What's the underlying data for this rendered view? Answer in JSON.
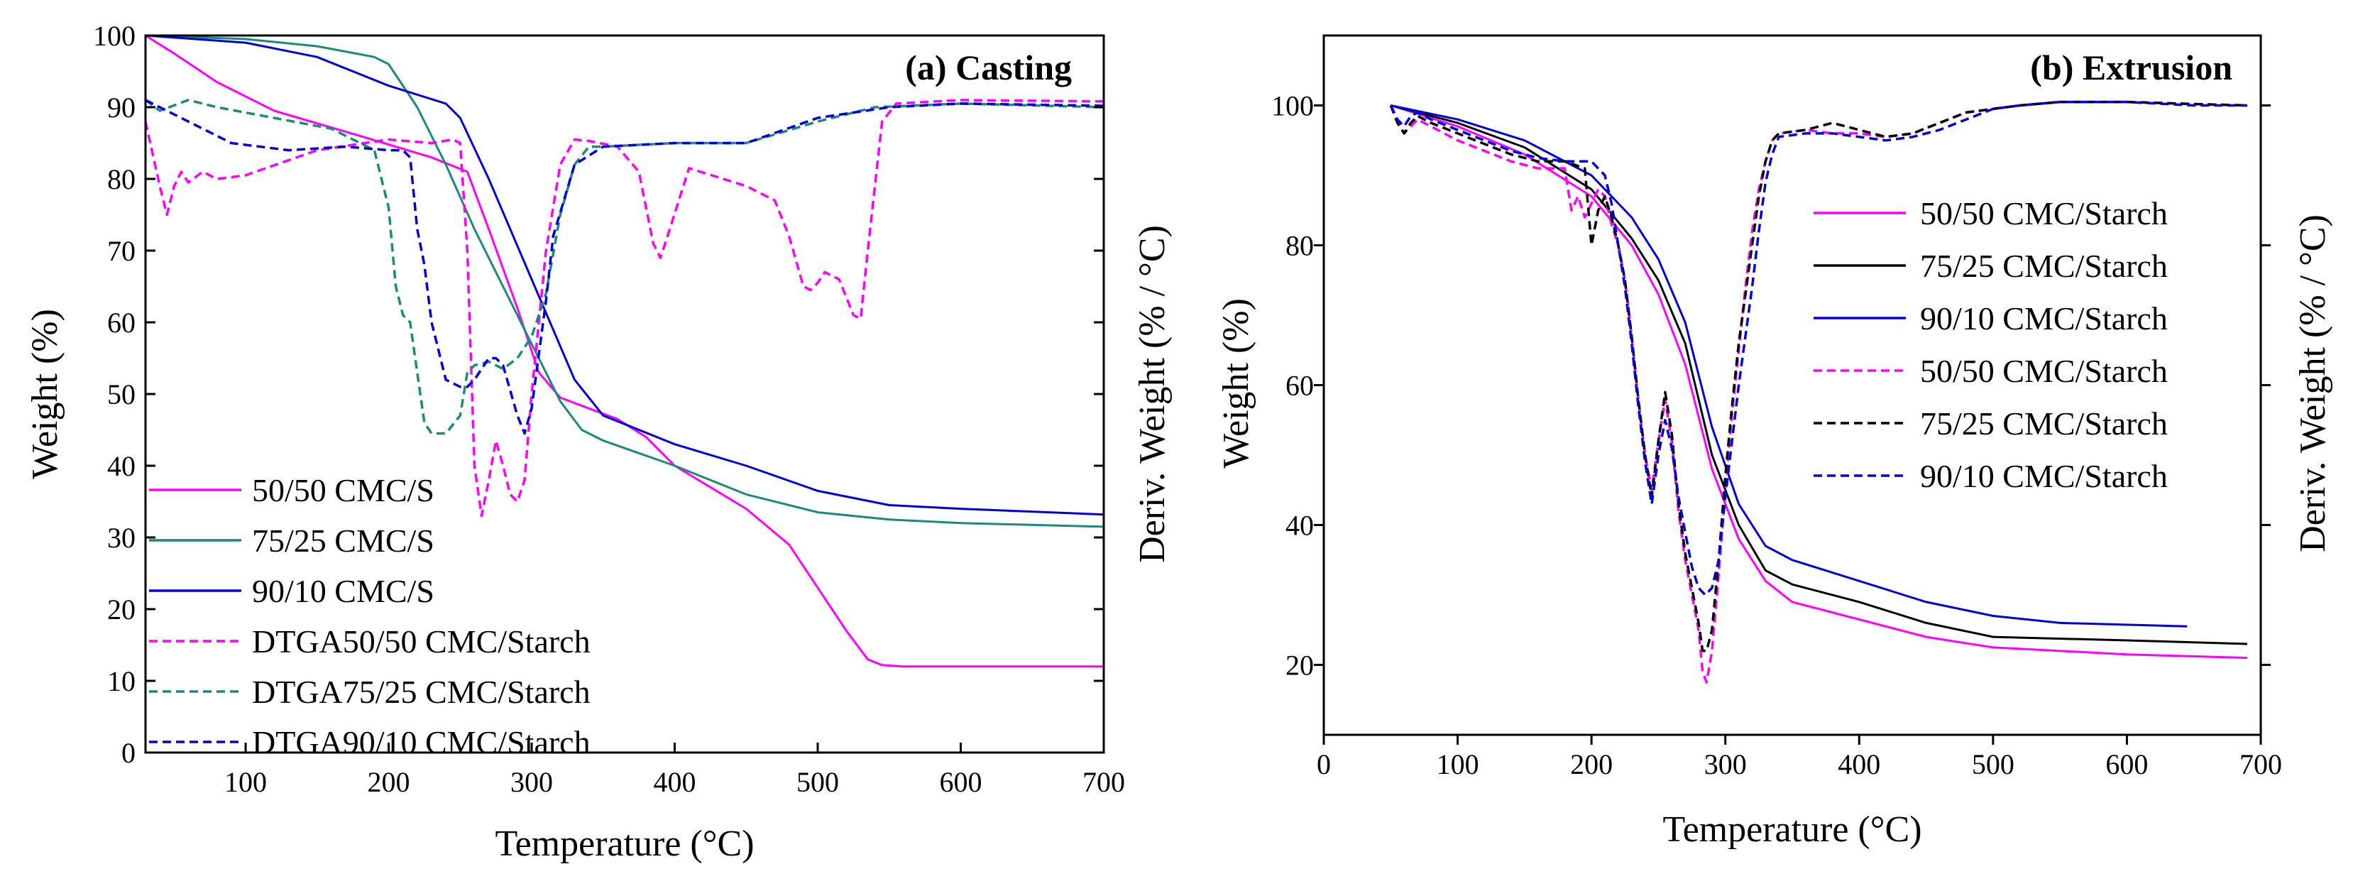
{
  "chart_data": [
    {
      "type": "line",
      "title": "(a) Casting",
      "xlabel": "Temperature (°C)",
      "ylabel": "Weight (%)",
      "y2label": "Deriv. Weight (% / °C)",
      "xlim": [
        30,
        700
      ],
      "ylim": [
        0,
        100
      ],
      "xticks": [
        100,
        200,
        300,
        400,
        500,
        600,
        700
      ],
      "yticks": [
        0,
        10,
        20,
        30,
        40,
        50,
        60,
        70,
        80,
        90,
        100
      ],
      "legend_position": "bottom-left",
      "series": [
        {
          "name": "50/50 CMC/S",
          "color": "#ff00ff",
          "dash": "solid",
          "x": [
            30,
            50,
            80,
            120,
            180,
            230,
            255,
            270,
            290,
            305,
            320,
            340,
            360,
            380,
            400,
            450,
            480,
            500,
            520,
            535,
            545,
            560,
            600,
            700
          ],
          "y": [
            100,
            97.5,
            93.5,
            89.5,
            86,
            83,
            81,
            73,
            62,
            53,
            49.5,
            48,
            46.5,
            44,
            40,
            34,
            29,
            23,
            17,
            13,
            12.2,
            12,
            12,
            12
          ]
        },
        {
          "name": "75/25 CMC/S",
          "color": "#1a8a7a",
          "dash": "solid",
          "x": [
            30,
            100,
            150,
            190,
            200,
            220,
            240,
            260,
            280,
            300,
            320,
            335,
            350,
            400,
            450,
            500,
            550,
            600,
            700
          ],
          "y": [
            100,
            99.5,
            98.5,
            97,
            96,
            90,
            82,
            73,
            65,
            57,
            49,
            45,
            43.5,
            40,
            36,
            33.5,
            32.5,
            32,
            31.5
          ]
        },
        {
          "name": "90/10 CMC/S",
          "color": "#0000dd",
          "dash": "solid",
          "x": [
            30,
            100,
            150,
            200,
            240,
            250,
            270,
            300,
            330,
            350,
            400,
            450,
            500,
            550,
            600,
            700
          ],
          "y": [
            100,
            99,
            97,
            93,
            90.5,
            88.5,
            80,
            66,
            52,
            47,
            43,
            40,
            36.5,
            34.5,
            34,
            33.2
          ]
        },
        {
          "name": "DTGA50/50 CMC/Starch",
          "color": "#ff00ff",
          "dash": "dashed",
          "x": [
            30,
            40,
            45,
            50,
            55,
            60,
            70,
            80,
            100,
            150,
            200,
            230,
            245,
            250,
            255,
            260,
            265,
            270,
            275,
            280,
            285,
            290,
            295,
            300,
            310,
            320,
            330,
            340,
            360,
            375,
            385,
            390,
            395,
            410,
            450,
            470,
            480,
            490,
            495,
            500,
            505,
            515,
            525,
            530,
            535,
            545,
            555,
            600,
            700
          ],
          "y": [
            88,
            79,
            75,
            79,
            81,
            79.5,
            81,
            80,
            80.5,
            84,
            85.5,
            85,
            85.5,
            85,
            70,
            40,
            33,
            38,
            43.5,
            40,
            36,
            35,
            38,
            50,
            70,
            82,
            85.5,
            85.3,
            84.5,
            81,
            71,
            69,
            72,
            81.5,
            79,
            77,
            72,
            65,
            64.5,
            65.5,
            67,
            66,
            61,
            60.5,
            70,
            88,
            90.5,
            91,
            90.8
          ]
        },
        {
          "name": "DTGA75/25 CMC/Starch",
          "color": "#1a8a7a",
          "dash": "dashed",
          "x": [
            30,
            40,
            60,
            80,
            120,
            160,
            190,
            200,
            205,
            210,
            215,
            220,
            225,
            230,
            240,
            250,
            255,
            260,
            270,
            280,
            290,
            300,
            310,
            320,
            330,
            340,
            350,
            400,
            450,
            500,
            540,
            600,
            700
          ],
          "y": [
            91,
            89.5,
            91,
            90,
            88.5,
            87,
            84,
            76,
            65,
            61,
            60,
            53,
            46,
            44.5,
            44.5,
            47,
            53,
            54,
            54.5,
            53.5,
            55,
            58,
            64,
            75,
            82,
            84.5,
            84.5,
            85,
            85,
            88,
            90,
            90.5,
            90
          ]
        },
        {
          "name": "DTGA90/10 CMC/Starch",
          "color": "#0000dd",
          "dash": "dashed",
          "x": [
            30,
            60,
            90,
            130,
            170,
            200,
            210,
            215,
            220,
            225,
            230,
            240,
            250,
            255,
            260,
            270,
            275,
            280,
            290,
            295,
            300,
            310,
            315,
            330,
            350,
            400,
            450,
            500,
            550,
            600,
            700
          ],
          "y": [
            91,
            88,
            85,
            84,
            84.5,
            84,
            84,
            83,
            73,
            68,
            60,
            52,
            51,
            51,
            52,
            55,
            55,
            54,
            47,
            44.5,
            48,
            63,
            72,
            82,
            84.5,
            85,
            85,
            88.5,
            90,
            90.5,
            90.2
          ]
        }
      ]
    },
    {
      "type": "line",
      "title": "(b) Extrusion",
      "xlabel": "Temperature (°C)",
      "ylabel": "Weight (%)",
      "y2label": "Deriv. Weight (% / °C)",
      "xlim": [
        0,
        700
      ],
      "ylim": [
        10,
        110
      ],
      "xticks": [
        0,
        100,
        200,
        300,
        400,
        500,
        600,
        700
      ],
      "yticks": [
        20,
        40,
        60,
        80,
        100
      ],
      "legend_position": "top-right",
      "series": [
        {
          "name": "50/50 CMC/Starch",
          "color": "#ff00ff",
          "dash": "solid",
          "x": [
            50,
            100,
            150,
            200,
            230,
            250,
            270,
            290,
            310,
            330,
            350,
            400,
            450,
            500,
            600,
            690
          ],
          "y": [
            100,
            97,
            93,
            87,
            80,
            73,
            63,
            48,
            38,
            32,
            29,
            26.5,
            24,
            22.5,
            21.5,
            21
          ]
        },
        {
          "name": "75/25 CMC/Starch",
          "color": "#000000",
          "dash": "solid",
          "x": [
            50,
            100,
            150,
            200,
            230,
            250,
            270,
            290,
            310,
            330,
            350,
            400,
            450,
            500,
            600,
            690
          ],
          "y": [
            100,
            97.5,
            94,
            88,
            81,
            75,
            66,
            50,
            40,
            33.5,
            31.5,
            29,
            26,
            24,
            23.5,
            23
          ]
        },
        {
          "name": "90/10 CMC/Starch",
          "color": "#0000dd",
          "dash": "solid",
          "x": [
            50,
            100,
            150,
            200,
            230,
            250,
            270,
            290,
            310,
            330,
            350,
            400,
            450,
            500,
            550,
            645
          ],
          "y": [
            100,
            98,
            95,
            90,
            84,
            78,
            69,
            54,
            43,
            37,
            35,
            32,
            29,
            27,
            26,
            25.5
          ]
        },
        {
          "name": "50/50 CMC/Starch",
          "color": "#ff00ff",
          "dash": "dashed",
          "x": [
            50,
            55,
            60,
            65,
            70,
            80,
            100,
            120,
            140,
            160,
            180,
            185,
            190,
            195,
            200,
            205,
            210,
            215,
            220,
            225,
            230,
            235,
            240,
            245,
            250,
            255,
            260,
            265,
            270,
            275,
            280,
            283,
            286,
            290,
            295,
            300,
            305,
            310,
            315,
            320,
            325,
            330,
            335,
            340,
            360,
            380,
            400,
            420,
            440,
            460,
            480,
            500,
            520,
            550,
            600,
            650,
            690
          ],
          "y": [
            100,
            98,
            96,
            97,
            98,
            97,
            95,
            93.5,
            92,
            91,
            91,
            85,
            87,
            84,
            86,
            88,
            87,
            83,
            80,
            75,
            67,
            58,
            50,
            45,
            52,
            58,
            52,
            42,
            35,
            30,
            25,
            19,
            17.5,
            22,
            33,
            45,
            56,
            65,
            74,
            82,
            88,
            92,
            95,
            96,
            96.5,
            96,
            96,
            95.5,
            96,
            97.5,
            99,
            99.5,
            100,
            100.5,
            100.5,
            100.2,
            100
          ]
        },
        {
          "name": "75/25 CMC/Starch",
          "color": "#000000",
          "dash": "dashed",
          "x": [
            50,
            55,
            60,
            65,
            70,
            80,
            100,
            120,
            140,
            160,
            180,
            195,
            200,
            205,
            210,
            215,
            220,
            225,
            230,
            235,
            240,
            245,
            250,
            255,
            260,
            265,
            270,
            275,
            280,
            283,
            286,
            290,
            295,
            300,
            305,
            310,
            315,
            320,
            325,
            330,
            335,
            340,
            360,
            380,
            400,
            420,
            440,
            460,
            480,
            500,
            520,
            550,
            600,
            650,
            690
          ],
          "y": [
            100,
            97.5,
            96,
            97.5,
            98.5,
            97.5,
            96,
            94.5,
            93,
            92,
            92,
            91,
            80,
            85,
            87,
            84,
            80,
            75,
            67,
            58,
            50,
            44,
            52,
            59,
            53,
            43,
            36,
            31,
            26,
            22,
            22,
            25,
            35,
            47,
            57,
            66,
            73,
            80,
            87,
            92,
            95,
            96,
            96.5,
            97.5,
            96.5,
            95.5,
            96,
            97.5,
            99,
            99.5,
            100,
            100.5,
            100.5,
            100.2,
            100
          ]
        },
        {
          "name": "90/10 CMC/Starch",
          "color": "#0000dd",
          "dash": "dashed",
          "x": [
            50,
            55,
            60,
            65,
            70,
            80,
            100,
            120,
            140,
            160,
            180,
            200,
            210,
            215,
            220,
            225,
            230,
            235,
            240,
            245,
            250,
            255,
            260,
            265,
            270,
            275,
            280,
            285,
            290,
            295,
            300,
            305,
            310,
            315,
            320,
            325,
            330,
            335,
            340,
            360,
            380,
            400,
            420,
            440,
            460,
            480,
            500,
            520,
            550,
            600,
            650,
            690
          ],
          "y": [
            100,
            98,
            97,
            98.5,
            99,
            98,
            96.5,
            95,
            93.5,
            92.5,
            92,
            92,
            90,
            86,
            80,
            74,
            66,
            57,
            49,
            43,
            50,
            55,
            51,
            44,
            39,
            34,
            31,
            30,
            31,
            35,
            44,
            52,
            60,
            67,
            74,
            82,
            89,
            93,
            95.5,
            96,
            96,
            95.5,
            95,
            95.5,
            96.5,
            98,
            99.5,
            100,
            100.5,
            100.5,
            100,
            100
          ]
        }
      ]
    }
  ]
}
